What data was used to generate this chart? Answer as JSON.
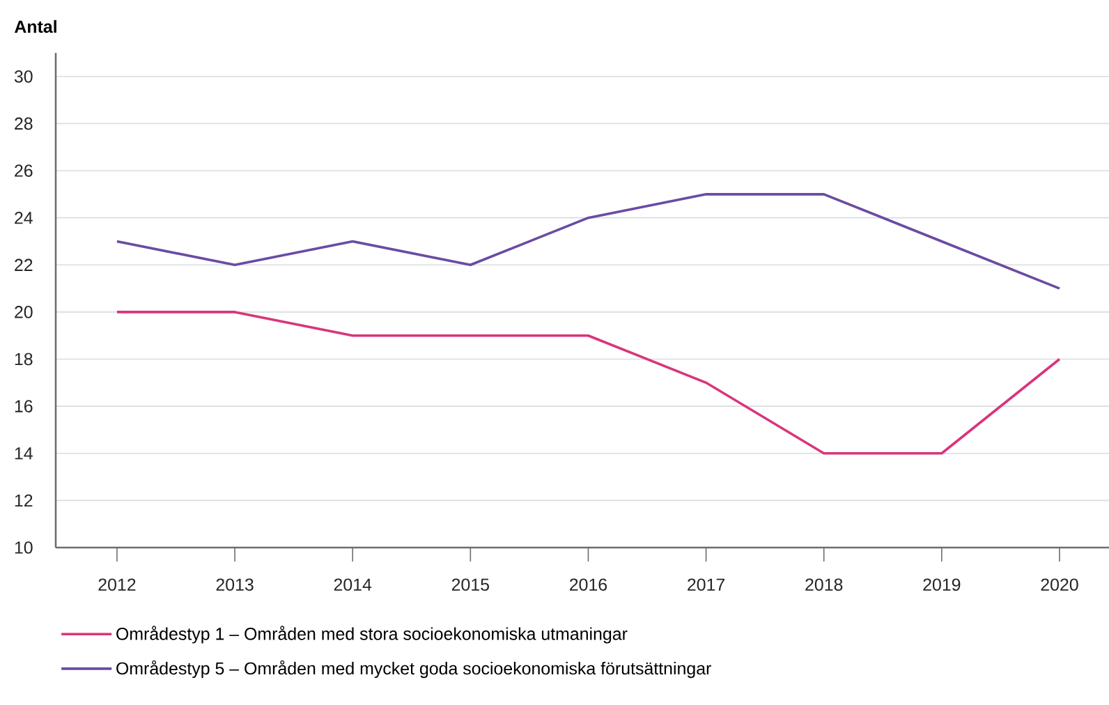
{
  "chart_data": {
    "type": "line",
    "ylabel": "Antal",
    "categories": [
      "2012",
      "2013",
      "2014",
      "2015",
      "2016",
      "2017",
      "2018",
      "2019",
      "2020"
    ],
    "series": [
      {
        "name": "Områdestyp 1 – Områden med stora socioekonomiska utmaningar",
        "color": "#d9357b",
        "values": [
          20,
          20,
          19,
          19,
          19,
          17,
          14,
          14,
          18
        ]
      },
      {
        "name": "Områdestyp 5 – Områden med mycket goda socioekonomiska förutsättningar",
        "color": "#6a4ba3",
        "values": [
          23,
          22,
          23,
          22,
          24,
          25,
          25,
          23,
          21
        ]
      }
    ],
    "ylim": [
      10,
      31
    ],
    "yticks": [
      10,
      12,
      14,
      16,
      18,
      20,
      22,
      24,
      26,
      28,
      30
    ],
    "grid": "y",
    "legend": "bottom",
    "marker": "none",
    "line_style": "solid"
  }
}
